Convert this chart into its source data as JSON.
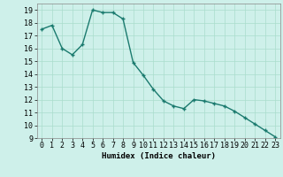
{
  "x": [
    0,
    1,
    2,
    3,
    4,
    5,
    6,
    7,
    8,
    9,
    10,
    11,
    12,
    13,
    14,
    15,
    16,
    17,
    18,
    19,
    20,
    21,
    22,
    23
  ],
  "y": [
    17.5,
    17.8,
    16.0,
    15.5,
    16.3,
    19.0,
    18.8,
    18.8,
    18.3,
    14.9,
    13.9,
    12.8,
    11.9,
    11.5,
    11.3,
    12.0,
    11.9,
    11.7,
    11.5,
    11.1,
    10.6,
    10.1,
    9.6,
    9.1
  ],
  "line_color": "#1a7a6e",
  "marker": "+",
  "marker_color": "#1a7a6e",
  "bg_color": "#cef0ea",
  "grid_color": "#aaddcc",
  "xlabel": "Humidex (Indice chaleur)",
  "xlim": [
    -0.5,
    23.5
  ],
  "ylim": [
    9,
    19.5
  ],
  "yticks": [
    9,
    10,
    11,
    12,
    13,
    14,
    15,
    16,
    17,
    18,
    19
  ],
  "xticks": [
    0,
    1,
    2,
    3,
    4,
    5,
    6,
    7,
    8,
    9,
    10,
    11,
    12,
    13,
    14,
    15,
    16,
    17,
    18,
    19,
    20,
    21,
    22,
    23
  ],
  "xlabel_fontsize": 6.5,
  "tick_fontsize": 6,
  "linewidth": 1.0,
  "markersize": 3.5
}
